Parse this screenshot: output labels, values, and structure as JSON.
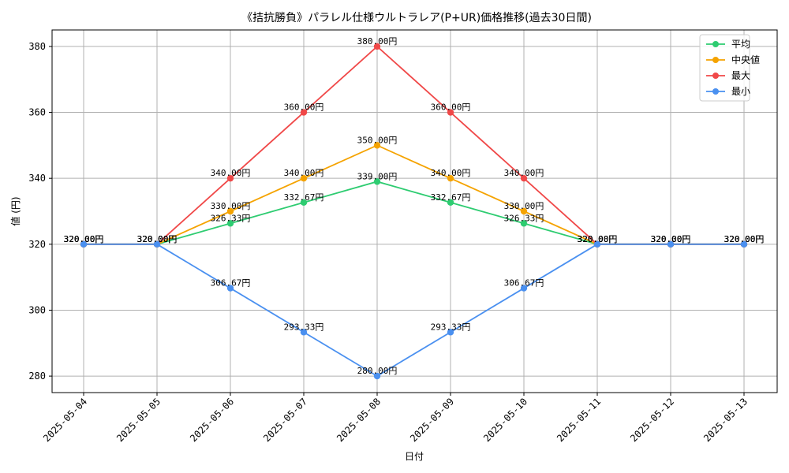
{
  "chart_data": {
    "type": "line",
    "title": "《拮抗勝負》パラレル仕様ウルトラレア(P+UR)価格推移(過去30日間)",
    "xlabel": "日付",
    "ylabel": "値 (円)",
    "categories": [
      "2025-05-04",
      "2025-05-05",
      "2025-05-06",
      "2025-05-07",
      "2025-05-08",
      "2025-05-09",
      "2025-05-10",
      "2025-05-11",
      "2025-05-12",
      "2025-05-13"
    ],
    "ylim": [
      275,
      385
    ],
    "yticks": [
      280,
      300,
      320,
      340,
      360,
      380
    ],
    "grid": true,
    "legend_position": "top-right",
    "value_suffix": "円",
    "series": [
      {
        "name": "平均",
        "color": "#2ecc71",
        "values": [
          320,
          320,
          326.33,
          332.67,
          339.0,
          332.67,
          326.33,
          320,
          320,
          320
        ]
      },
      {
        "name": "中央値",
        "color": "#f5a300",
        "values": [
          320,
          320,
          330,
          340,
          350,
          340,
          330,
          320,
          320,
          320
        ]
      },
      {
        "name": "最大",
        "color": "#f04848",
        "values": [
          320,
          320,
          340,
          360,
          380,
          360,
          340,
          320,
          320,
          320
        ]
      },
      {
        "name": "最小",
        "color": "#4a90f0",
        "values": [
          320,
          320,
          306.67,
          293.33,
          280,
          293.33,
          306.67,
          320,
          320,
          320
        ]
      }
    ]
  }
}
